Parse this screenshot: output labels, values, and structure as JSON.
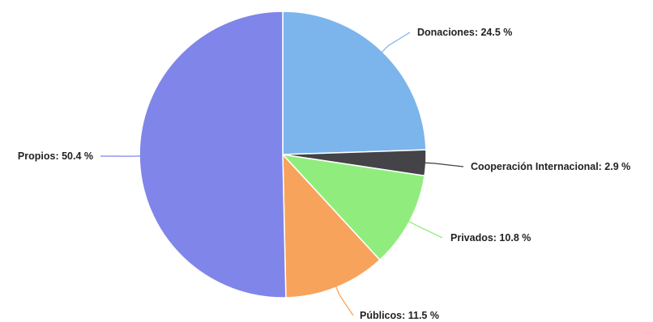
{
  "chart_data": {
    "type": "pie",
    "title": "",
    "slices": [
      {
        "label": "Donaciones",
        "value": 24.5,
        "display": "Donaciones: 24.5 %",
        "color": "#7cb5ec"
      },
      {
        "label": "Cooperación Internacional",
        "value": 2.9,
        "display": "Cooperación Internacional: 2.9 %",
        "color": "#434348"
      },
      {
        "label": "Privados",
        "value": 10.8,
        "display": "Privados: 10.8 %",
        "color": "#90ed7d"
      },
      {
        "label": "Públicos",
        "value": 11.5,
        "display": "Públicos: 11.5 %",
        "color": "#f7a35c"
      },
      {
        "label": "Propios",
        "value": 50.4,
        "display": "Propios: 50.4 %",
        "color": "#8085e9"
      }
    ],
    "start_angle": "12 o'clock",
    "direction": "clockwise",
    "legend": "none",
    "data_labels": "outside with connectors"
  }
}
